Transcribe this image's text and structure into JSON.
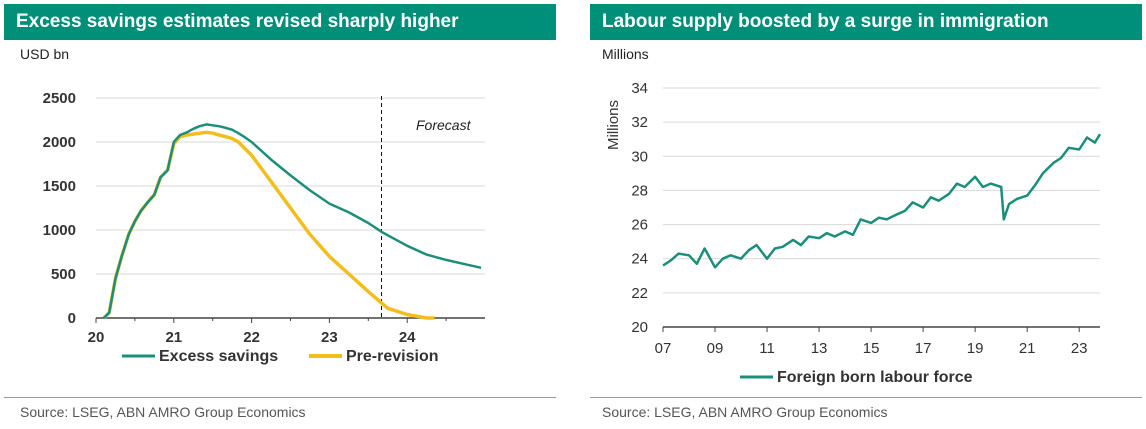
{
  "panels": [
    {
      "title": "Excess savings estimates revised sharply higher",
      "unit": "USD bn",
      "source": "Source: LSEG, ABN AMRO Group Economics"
    },
    {
      "title": "Labour supply boosted by a surge in immigration",
      "unit": "Millions",
      "source": "Source: LSEG, ABN AMRO Group Economics"
    }
  ],
  "chart_data": [
    {
      "type": "line",
      "title": "Excess savings estimates revised sharply higher",
      "ylabel": "USD bn",
      "xlim": [
        2020,
        2025
      ],
      "ylim": [
        0,
        2500
      ],
      "x_ticks": [
        "20",
        "21",
        "22",
        "23",
        "24"
      ],
      "y_ticks": [
        "0",
        "500",
        "1000",
        "1500",
        "2000",
        "2500"
      ],
      "grid": true,
      "legend": "bottom",
      "annotations": [
        {
          "text": "Forecast",
          "x": 2023.67
        }
      ],
      "series": [
        {
          "name": "Excess savings",
          "color": "#1b8f7b",
          "x": [
            2020.1,
            2020.17,
            2020.25,
            2020.33,
            2020.42,
            2020.5,
            2020.58,
            2020.67,
            2020.75,
            2020.83,
            2020.92,
            2021.0,
            2021.08,
            2021.17,
            2021.25,
            2021.33,
            2021.42,
            2021.5,
            2021.58,
            2021.67,
            2021.75,
            2021.83,
            2021.92,
            2022.0,
            2022.25,
            2022.5,
            2022.75,
            2023.0,
            2023.25,
            2023.5,
            2023.67,
            2023.75,
            2024.0,
            2024.25,
            2024.5,
            2024.75,
            2024.95
          ],
          "y": [
            0,
            60,
            450,
            700,
            950,
            1100,
            1220,
            1320,
            1400,
            1600,
            1680,
            2000,
            2080,
            2110,
            2150,
            2180,
            2200,
            2190,
            2180,
            2160,
            2140,
            2100,
            2050,
            2000,
            1800,
            1620,
            1450,
            1300,
            1200,
            1080,
            980,
            940,
            820,
            720,
            660,
            610,
            570
          ]
        },
        {
          "name": "Pre-revision",
          "color": "#f2bd1d",
          "x": [
            2020.1,
            2020.17,
            2020.25,
            2020.33,
            2020.42,
            2020.5,
            2020.58,
            2020.67,
            2020.75,
            2020.83,
            2020.92,
            2021.0,
            2021.08,
            2021.17,
            2021.25,
            2021.33,
            2021.42,
            2021.5,
            2021.58,
            2021.67,
            2021.75,
            2021.83,
            2021.92,
            2022.0,
            2022.25,
            2022.5,
            2022.75,
            2023.0,
            2023.25,
            2023.5,
            2023.67,
            2023.75,
            2024.0,
            2024.25,
            2024.35
          ],
          "y": [
            0,
            60,
            450,
            700,
            950,
            1100,
            1220,
            1320,
            1400,
            1600,
            1680,
            1980,
            2060,
            2080,
            2090,
            2100,
            2110,
            2100,
            2080,
            2060,
            2040,
            2000,
            1920,
            1850,
            1550,
            1250,
            950,
            700,
            500,
            300,
            170,
            110,
            40,
            0,
            0
          ]
        }
      ]
    },
    {
      "type": "line",
      "title": "Labour supply boosted by a surge in immigration",
      "ylabel": "Millions",
      "xlim": [
        2007,
        2023.8
      ],
      "ylim": [
        20,
        34
      ],
      "x_ticks": [
        "07",
        "09",
        "11",
        "13",
        "15",
        "17",
        "19",
        "21",
        "23"
      ],
      "y_ticks": [
        "20",
        "22",
        "24",
        "26",
        "28",
        "30",
        "32",
        "34"
      ],
      "grid": true,
      "legend": "bottom",
      "series": [
        {
          "name": "Foreign born labour force",
          "color": "#1b8f7b",
          "x": [
            2007.0,
            2007.3,
            2007.6,
            2008.0,
            2008.3,
            2008.6,
            2009.0,
            2009.3,
            2009.6,
            2010.0,
            2010.3,
            2010.6,
            2011.0,
            2011.3,
            2011.6,
            2012.0,
            2012.3,
            2012.6,
            2013.0,
            2013.3,
            2013.6,
            2014.0,
            2014.3,
            2014.6,
            2015.0,
            2015.3,
            2015.6,
            2016.0,
            2016.3,
            2016.6,
            2017.0,
            2017.3,
            2017.6,
            2018.0,
            2018.3,
            2018.6,
            2019.0,
            2019.3,
            2019.6,
            2020.0,
            2020.1,
            2020.3,
            2020.6,
            2021.0,
            2021.3,
            2021.6,
            2022.0,
            2022.3,
            2022.6,
            2023.0,
            2023.3,
            2023.6,
            2023.8
          ],
          "y": [
            23.6,
            23.9,
            24.3,
            24.2,
            23.7,
            24.6,
            23.5,
            24.0,
            24.2,
            24.0,
            24.5,
            24.8,
            24.0,
            24.6,
            24.7,
            25.1,
            24.8,
            25.3,
            25.2,
            25.5,
            25.3,
            25.6,
            25.4,
            26.3,
            26.1,
            26.4,
            26.3,
            26.6,
            26.8,
            27.3,
            27.0,
            27.6,
            27.4,
            27.8,
            28.4,
            28.2,
            28.8,
            28.2,
            28.4,
            28.2,
            26.3,
            27.2,
            27.5,
            27.7,
            28.3,
            29.0,
            29.6,
            29.9,
            30.5,
            30.4,
            31.1,
            30.8,
            31.3
          ]
        }
      ]
    }
  ]
}
